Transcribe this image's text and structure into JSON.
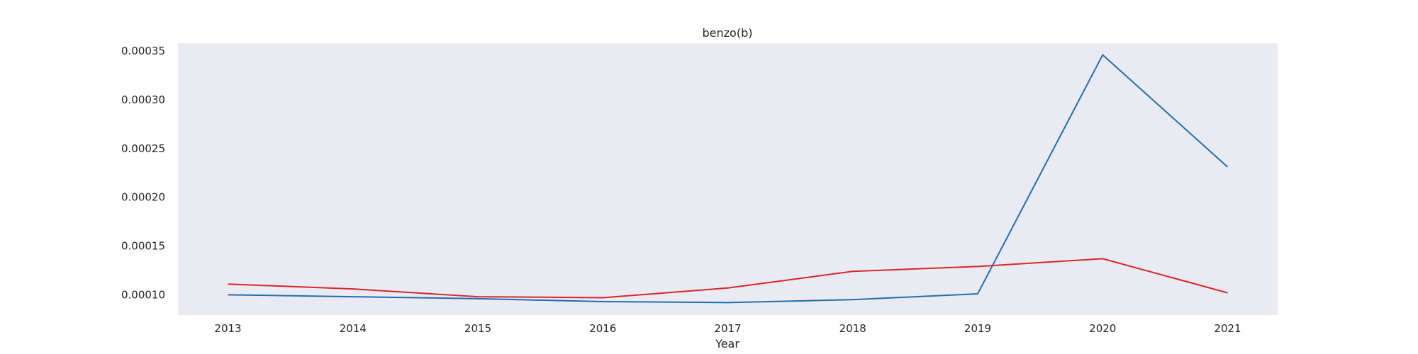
{
  "chart_data": {
    "type": "line",
    "title": "benzo(b)",
    "xlabel": "Year",
    "ylabel": "",
    "x": [
      2013,
      2014,
      2015,
      2016,
      2017,
      2018,
      2019,
      2020,
      2021
    ],
    "xlim": [
      2012.6,
      2021.4
    ],
    "ylim": [
      7.92e-05,
      0.000358
    ],
    "yticks": [
      0.0001,
      0.00015,
      0.0002,
      0.00025,
      0.0003,
      0.00035
    ],
    "ytick_labels": [
      "0.00010",
      "0.00015",
      "0.00020",
      "0.00025",
      "0.00030",
      "0.00035"
    ],
    "grid": false,
    "background_color": "#eaeaf2",
    "series": [
      {
        "color": "#1f6fb0",
        "values": [
          0.0001,
          9.8e-05,
          9.6e-05,
          9.3e-05,
          9.2e-05,
          9.5e-05,
          0.000101,
          0.000346,
          0.000231
        ]
      },
      {
        "color": "#d62728",
        "values": [
          0.000111,
          0.000106,
          9.8e-05,
          9.7e-05,
          0.000107,
          0.000124,
          0.000129,
          0.000137,
          0.000102
        ]
      }
    ]
  }
}
